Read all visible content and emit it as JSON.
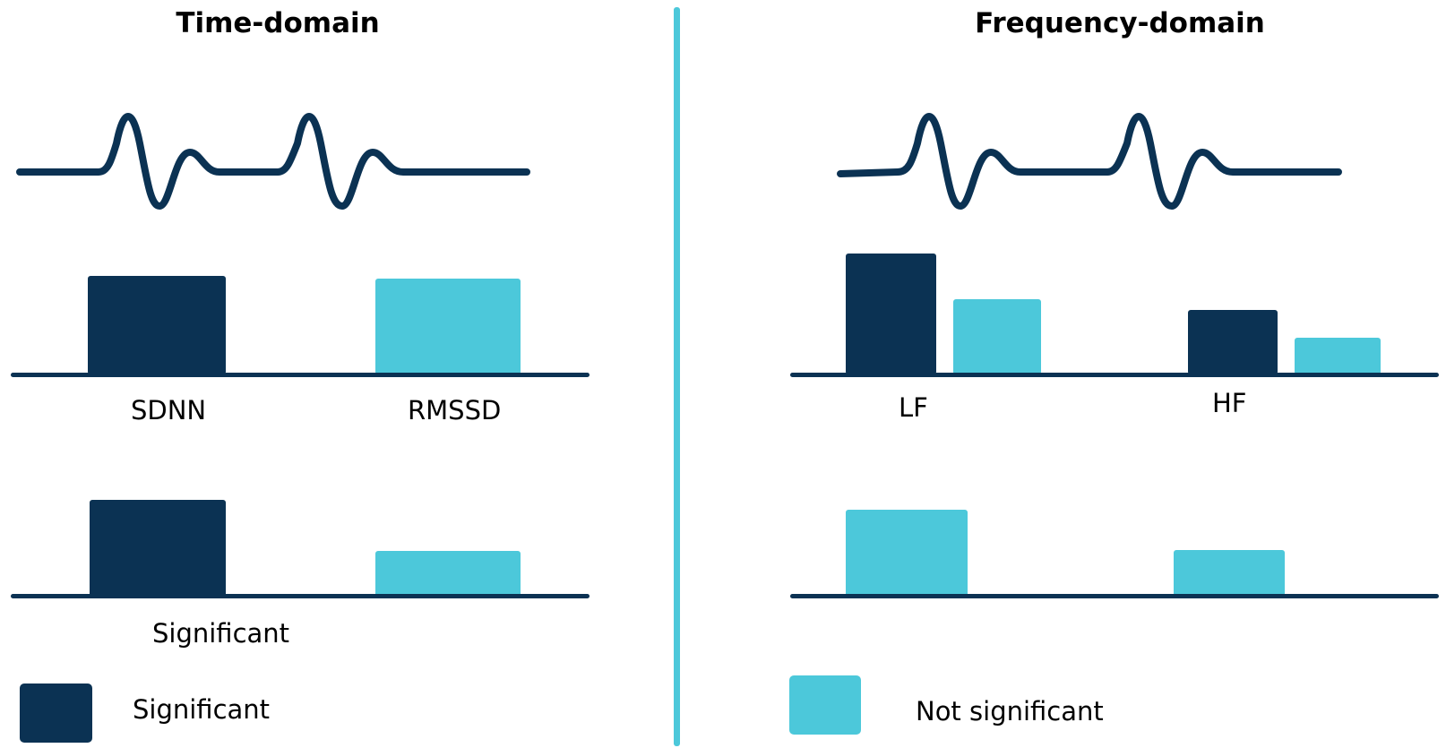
{
  "colors": {
    "significant": "#0b3253",
    "not_significant": "#4cc8da",
    "divider": "#4cc8da",
    "axis": "#0b3253"
  },
  "time_domain": {
    "title": "Time-domain",
    "labels": {
      "sdnn": "SDNN",
      "rmssd": "RMSSD"
    },
    "bottom_label": "Significant",
    "upper_chart": {
      "sdnn": 1.0,
      "rmssd": 0.97
    },
    "lower_chart": {
      "sdnn": 1.0,
      "rmssd": 0.45
    }
  },
  "frequency_domain": {
    "title": "Frequency-domain",
    "labels": {
      "lf": "LF",
      "hf": "HF"
    },
    "upper_chart": {
      "lf_significant": 1.0,
      "lf_not_significant": 0.62,
      "hf_significant": 0.53,
      "hf_not_significant": 0.27
    },
    "lower_chart": {
      "lf": 1.0,
      "hf": 0.53
    }
  },
  "legend": {
    "significant": "Significant",
    "not_significant": "Not significant"
  }
}
